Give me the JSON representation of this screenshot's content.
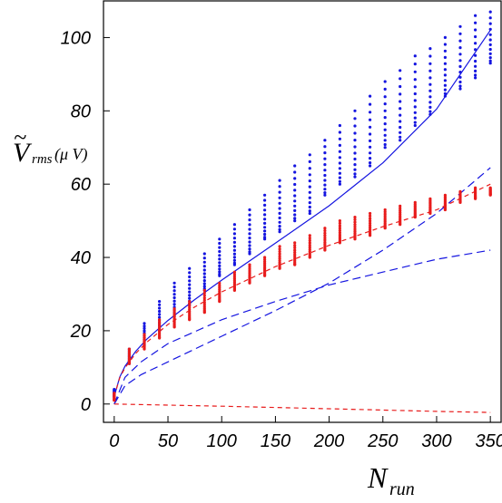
{
  "chart_data": {
    "type": "scatter",
    "title": "",
    "xlabel": {
      "main": "N",
      "subscript": "run"
    },
    "ylabel": {
      "tilde": "~",
      "main": "V",
      "subscript": "rms",
      "unit": "(μ V)"
    },
    "xlim": [
      -10,
      360
    ],
    "ylim": [
      -5,
      110
    ],
    "xticks": [
      "0",
      "50",
      "100",
      "150",
      "200",
      "250",
      "300",
      "350"
    ],
    "xtick_values": [
      0,
      50,
      100,
      150,
      200,
      250,
      300,
      350
    ],
    "yticks": [
      "0",
      "20",
      "40",
      "60",
      "80",
      "100"
    ],
    "ytick_values": [
      0,
      20,
      40,
      60,
      80,
      100
    ],
    "grid": false,
    "legend": "none",
    "colors": {
      "blue": "#1515e0",
      "red": "#e81c1c",
      "axis": "#000000"
    },
    "series": [
      {
        "color": "blue",
        "kind": "points",
        "x": [
          0,
          14,
          28,
          42,
          56,
          70,
          84,
          98,
          112,
          126,
          140,
          154,
          168,
          182,
          196,
          210,
          224,
          238,
          252,
          266,
          280,
          294,
          308,
          322,
          336,
          350
        ],
        "y_low": [
          2,
          11,
          16,
          20,
          24,
          27,
          31,
          35,
          38,
          41,
          45,
          47,
          50,
          52,
          57,
          60,
          62,
          65,
          70,
          72,
          76,
          79,
          84,
          86,
          89,
          93
        ],
        "y_high": [
          4,
          15,
          22,
          28,
          33,
          37,
          41,
          45,
          49,
          53,
          57,
          61,
          65,
          68,
          72,
          76,
          80,
          84,
          88,
          91,
          95,
          97,
          100,
          103,
          106,
          107
        ]
      },
      {
        "color": "red",
        "kind": "points",
        "x": [
          0,
          14,
          28,
          42,
          56,
          70,
          84,
          98,
          112,
          126,
          140,
          154,
          168,
          182,
          196,
          210,
          224,
          238,
          252,
          266,
          280,
          294,
          308,
          322,
          336,
          350
        ],
        "y_low": [
          1,
          11,
          15,
          18,
          21,
          23,
          25,
          28,
          31,
          33,
          35,
          37,
          38,
          40,
          42,
          44,
          45,
          46,
          48,
          49,
          51,
          52,
          53,
          55,
          56,
          57
        ],
        "y_high": [
          3,
          15,
          19,
          23,
          26,
          28,
          31,
          33,
          36,
          38,
          40,
          43,
          44,
          46,
          48,
          50,
          51,
          52,
          53,
          54,
          55,
          56,
          57,
          58,
          59,
          59
        ]
      },
      {
        "color": "blue",
        "kind": "curve",
        "style": "solid",
        "x": [
          0,
          5,
          10,
          20,
          30,
          50,
          75,
          100,
          150,
          200,
          250,
          300,
          350
        ],
        "y": [
          2,
          7.3,
          10.3,
          14.4,
          17.6,
          22.8,
          28.5,
          33.8,
          43.9,
          54.1,
          65.8,
          80.5,
          102
        ]
      },
      {
        "color": "red",
        "kind": "curve",
        "style": "dashed",
        "x": [
          0,
          5,
          10,
          20,
          30,
          50,
          75,
          100,
          150,
          200,
          250,
          300,
          350
        ],
        "y": [
          2,
          7.1,
          9.9,
          13.8,
          16.8,
          21.7,
          26.5,
          30.6,
          37.5,
          43.3,
          48.4,
          53.0,
          60
        ]
      },
      {
        "color": "blue",
        "kind": "curve",
        "style": "dashed",
        "x": [
          0,
          10,
          25,
          50,
          100,
          150,
          200,
          250,
          300,
          350
        ],
        "y": [
          0,
          5.0,
          8.0,
          11.5,
          18.5,
          25.5,
          33.0,
          42.0,
          52.0,
          64.5
        ]
      },
      {
        "color": "blue",
        "kind": "curve",
        "style": "dashed",
        "x": [
          0,
          10,
          25,
          50,
          100,
          150,
          200,
          250,
          300,
          350
        ],
        "y": [
          0,
          7.3,
          11.5,
          16.5,
          23.0,
          28.0,
          32.5,
          36.0,
          39.5,
          42.0
        ]
      },
      {
        "color": "red",
        "kind": "curve",
        "style": "dashed",
        "x": [
          0,
          100,
          200,
          300,
          350
        ],
        "y": [
          0,
          -0.6,
          -1.3,
          -2.0,
          -2.3
        ]
      }
    ]
  }
}
